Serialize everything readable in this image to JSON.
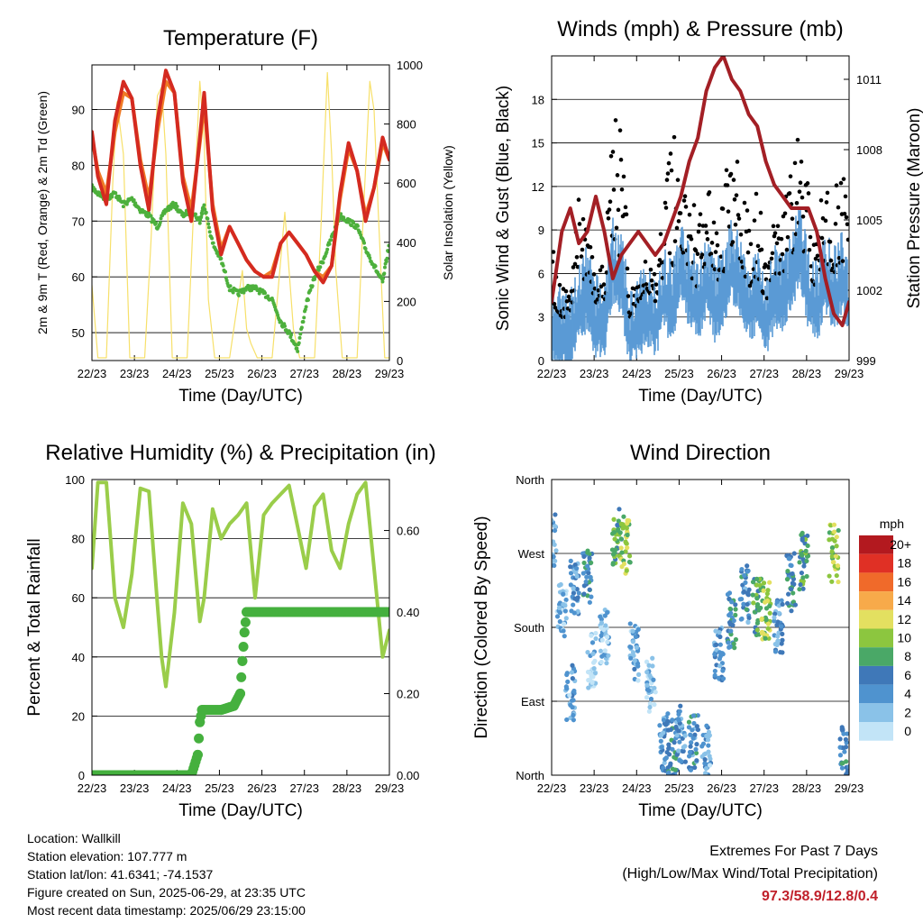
{
  "x_ticks": [
    "22/23",
    "23/23",
    "24/23",
    "25/23",
    "26/23",
    "27/23",
    "28/23",
    "29/23"
  ],
  "x_label": "Time (Day/UTC)",
  "panels": {
    "temperature": {
      "title": "Temperature (F)",
      "ylabel_left": "2m & 9m T (Red, Orange) & 2m Td (Green)",
      "ylabel_right": "Solar Insolation (Yellow)",
      "yticks_left": [
        "50",
        "60",
        "70",
        "80",
        "90"
      ],
      "yticks_right": [
        "0",
        "200",
        "400",
        "600",
        "800",
        "1000"
      ]
    },
    "winds": {
      "title": "Winds (mph) & Pressure (mb)",
      "ylabel_left": "Sonic Wind & Gust (Blue, Black)",
      "ylabel_right": "Station Pressure (Maroon)",
      "yticks_left": [
        "0",
        "3",
        "6",
        "9",
        "12",
        "15",
        "18"
      ],
      "yticks_right": [
        "999",
        "1002",
        "1005",
        "1008",
        "1011"
      ]
    },
    "humidity": {
      "title": "Relative Humidity (%) & Precipitation (in)",
      "ylabel_left": "Percent & Total Rainfall",
      "yticks_left": [
        "0",
        "20",
        "40",
        "60",
        "80",
        "100"
      ],
      "yticks_right": [
        "0.00",
        "0.20",
        "0.40",
        "0.60"
      ]
    },
    "direction": {
      "title": "Wind Direction",
      "ylabel_left": "Direction (Colored By Speed)",
      "yticks_left": [
        "North",
        "East",
        "South",
        "West",
        "North"
      ],
      "legend_title": "mph",
      "legend_labels": [
        "20+",
        "18",
        "16",
        "14",
        "12",
        "10",
        "8",
        "6",
        "4",
        "2",
        "0"
      ]
    }
  },
  "colors": {
    "temp_2m": "#d42a20",
    "temp_9m": "#f07a25",
    "dewpoint": "#4db03c",
    "solar": "#f7e06a",
    "gust": "#000000",
    "wind": "#5a9bd5",
    "pressure": "#a31f25",
    "rh": "#9acd4a",
    "precip": "#45b03e",
    "speed_scale": [
      "#c2e4f7",
      "#8ac2e8",
      "#4f93cf",
      "#3f78b8",
      "#4aa867",
      "#8cc63f",
      "#e3e060",
      "#f7aa4a",
      "#f06a2a",
      "#e03025",
      "#b3191f"
    ]
  },
  "info": {
    "location": "Location: Wallkill",
    "elevation": "Station elevation: 107.777 m",
    "latlon": "Station lat/lon: 41.6341; -74.1537",
    "created": "Figure created on Sun, 2025-06-29, at 23:35 UTC",
    "latest": "Most recent data timestamp: 2025/06/29 23:15:00"
  },
  "extremes": {
    "title": "Extremes For Past 7 Days",
    "subtitle": "(High/Low/Max Wind/Total Precipitation)",
    "values": "97.3/58.9/12.8/0.4"
  },
  "chart_data": [
    {
      "type": "line",
      "title": "Temperature (F)",
      "xlabel": "Time (Day/UTC)",
      "ylabel": "2m & 9m T (Red, Orange) & 2m Td (Green)",
      "ylabel_right": "Solar Insolation (Yellow)",
      "x_range_days": [
        22.96,
        29.96
      ],
      "ylim": [
        45,
        98
      ],
      "ylim_right": [
        0,
        1000
      ],
      "series": [
        {
          "name": "2m T",
          "axis": "left",
          "x": [
            22.96,
            23.1,
            23.3,
            23.5,
            23.7,
            23.9,
            24.1,
            24.3,
            24.5,
            24.7,
            24.9,
            25.1,
            25.3,
            25.5,
            25.6,
            25.8,
            26.0,
            26.2,
            26.4,
            26.6,
            26.8,
            27.0,
            27.2,
            27.4,
            27.6,
            27.8,
            28.0,
            28.2,
            28.4,
            28.6,
            28.8,
            29.0,
            29.2,
            29.4,
            29.6,
            29.8,
            29.96
          ],
          "values": [
            86,
            78,
            73,
            88,
            95,
            92,
            80,
            72,
            88,
            97,
            93,
            77,
            70,
            85,
            93,
            72,
            64,
            69,
            66,
            63,
            61,
            60,
            60,
            66,
            68,
            66,
            64,
            61,
            59,
            62,
            75,
            84,
            79,
            70,
            76,
            85,
            81
          ]
        },
        {
          "name": "9m T",
          "axis": "left",
          "x": [
            22.96,
            23.1,
            23.3,
            23.5,
            23.7,
            23.9,
            24.1,
            24.3,
            24.5,
            24.7,
            24.9,
            25.1,
            25.3,
            25.5,
            25.6,
            25.8,
            26.0,
            26.2,
            26.4,
            26.6,
            26.8,
            27.0,
            27.2,
            27.4,
            27.6,
            27.8,
            28.0,
            28.2,
            28.4,
            28.6,
            28.8,
            29.0,
            29.2,
            29.4,
            29.6,
            29.8,
            29.96
          ],
          "values": [
            85,
            79,
            75,
            86,
            93,
            92,
            81,
            74,
            86,
            95,
            93,
            78,
            72,
            84,
            91,
            73,
            65,
            69,
            66,
            63,
            61,
            60,
            61,
            66,
            68,
            66,
            64,
            61,
            60,
            62,
            74,
            83,
            79,
            71,
            76,
            84,
            81
          ]
        },
        {
          "name": "2m Td",
          "axis": "left",
          "x": [
            22.96,
            23.1,
            23.3,
            23.5,
            23.7,
            23.9,
            24.1,
            24.3,
            24.5,
            24.7,
            24.9,
            25.1,
            25.3,
            25.5,
            25.6,
            25.8,
            26.0,
            26.2,
            26.4,
            26.6,
            26.8,
            27.0,
            27.2,
            27.4,
            27.6,
            27.8,
            28.0,
            28.2,
            28.4,
            28.6,
            28.8,
            29.0,
            29.2,
            29.4,
            29.6,
            29.8,
            29.96
          ],
          "values": [
            76,
            75,
            74,
            75,
            73,
            74,
            72,
            71,
            69,
            72,
            73,
            71,
            72,
            70,
            73,
            66,
            63,
            58,
            57,
            58,
            58,
            57,
            56,
            52,
            50,
            47,
            55,
            60,
            63,
            67,
            71,
            70,
            69,
            65,
            62,
            59,
            66
          ]
        },
        {
          "name": "Solar Insolation",
          "axis": "right",
          "x": [
            22.96,
            23.1,
            23.3,
            23.45,
            23.55,
            23.7,
            23.85,
            24.2,
            24.35,
            24.5,
            24.6,
            24.7,
            24.85,
            25.2,
            25.35,
            25.5,
            25.6,
            25.7,
            25.85,
            26.2,
            26.35,
            26.5,
            26.6,
            26.7,
            26.85,
            27.2,
            27.35,
            27.5,
            27.6,
            27.7,
            27.85,
            28.2,
            28.35,
            28.5,
            28.6,
            28.7,
            28.85,
            29.2,
            29.35,
            29.5,
            29.6,
            29.7,
            29.85,
            29.96
          ],
          "values": [
            250,
            0,
            0,
            600,
            880,
            700,
            0,
            0,
            400,
            900,
            930,
            700,
            0,
            0,
            500,
            950,
            750,
            200,
            0,
            0,
            150,
            300,
            100,
            50,
            0,
            0,
            250,
            500,
            300,
            100,
            0,
            0,
            450,
            980,
            700,
            300,
            0,
            0,
            500,
            950,
            850,
            500,
            0,
            0
          ]
        }
      ]
    },
    {
      "type": "line",
      "title": "Winds (mph) & Pressure (mb)",
      "xlabel": "Time (Day/UTC)",
      "ylabel": "Sonic Wind & Gust (Blue, Black)",
      "ylabel_right": "Station Pressure (Maroon)",
      "x_range_days": [
        22.96,
        29.96
      ],
      "ylim": [
        0,
        21
      ],
      "ylim_right": [
        999,
        1012
      ],
      "series": [
        {
          "name": "Sonic Wind",
          "axis": "left",
          "x": [
            22.96,
            23.2,
            23.4,
            23.6,
            23.8,
            24.0,
            24.2,
            24.4,
            24.6,
            24.8,
            25.0,
            25.2,
            25.4,
            25.6,
            25.8,
            26.0,
            26.2,
            26.4,
            26.6,
            26.8,
            27.0,
            27.2,
            27.4,
            27.6,
            27.8,
            28.0,
            28.2,
            28.4,
            28.6,
            28.8,
            29.0,
            29.2,
            29.4,
            29.6,
            29.8,
            29.96
          ],
          "values": [
            3,
            2,
            2,
            4,
            5,
            3,
            3,
            7,
            6,
            2,
            3,
            4,
            3,
            5,
            4,
            7,
            5,
            4,
            6,
            4,
            5,
            7,
            6,
            4,
            5,
            3,
            5,
            5,
            6,
            8,
            5,
            4,
            6,
            5,
            6,
            4
          ]
        },
        {
          "name": "Gust",
          "axis": "left",
          "x": [
            22.96,
            23.2,
            23.4,
            23.6,
            23.8,
            24.0,
            24.2,
            24.4,
            24.6,
            24.8,
            25.0,
            25.2,
            25.4,
            25.6,
            25.8,
            26.0,
            26.2,
            26.4,
            26.6,
            26.8,
            27.0,
            27.2,
            27.4,
            27.6,
            27.8,
            28.0,
            28.2,
            28.4,
            28.6,
            28.8,
            29.0,
            29.2,
            29.4,
            29.6,
            29.8,
            29.96
          ],
          "values": [
            8,
            6,
            5,
            12,
            9,
            6,
            7,
            16,
            18,
            5,
            6,
            7,
            6,
            12,
            17,
            10,
            13,
            9,
            13,
            10,
            12,
            15,
            13,
            10,
            12,
            8,
            10,
            11,
            13,
            17,
            12,
            9,
            13,
            12,
            14,
            9
          ]
        },
        {
          "name": "Station Pressure",
          "axis": "right",
          "x": [
            22.96,
            23.2,
            23.4,
            23.6,
            23.8,
            24.0,
            24.2,
            24.4,
            24.6,
            24.8,
            25.0,
            25.2,
            25.4,
            25.6,
            25.8,
            26.0,
            26.2,
            26.4,
            26.6,
            26.8,
            27.0,
            27.2,
            27.4,
            27.6,
            27.8,
            28.0,
            28.2,
            28.4,
            28.6,
            28.8,
            29.0,
            29.2,
            29.4,
            29.6,
            29.8,
            29.96
          ],
          "values": [
            1001.5,
            1004.5,
            1005.5,
            1004.0,
            1004.5,
            1006.0,
            1004.5,
            1002.5,
            1003.5,
            1004.0,
            1004.5,
            1004.0,
            1003.5,
            1004.0,
            1005.0,
            1006.0,
            1007.5,
            1008.5,
            1010.5,
            1011.5,
            1012.0,
            1011.0,
            1010.5,
            1009.5,
            1009.0,
            1007.5,
            1006.5,
            1006.0,
            1005.5,
            1005.5,
            1005.5,
            1004.5,
            1002.5,
            1001.0,
            1000.5,
            1001.5
          ]
        }
      ]
    },
    {
      "type": "line",
      "title": "Relative Humidity (%) & Precipitation (in)",
      "xlabel": "Time (Day/UTC)",
      "ylabel": "Percent & Total Rainfall",
      "x_range_days": [
        22.96,
        29.96
      ],
      "ylim": [
        0,
        100
      ],
      "ylim_right": [
        0,
        0.725
      ],
      "series": [
        {
          "name": "Relative Humidity",
          "axis": "left",
          "x": [
            22.96,
            23.1,
            23.3,
            23.5,
            23.7,
            23.9,
            24.1,
            24.3,
            24.5,
            24.6,
            24.7,
            24.9,
            25.1,
            25.3,
            25.5,
            25.6,
            25.8,
            26.0,
            26.2,
            26.4,
            26.6,
            26.8,
            27.0,
            27.2,
            27.4,
            27.6,
            27.8,
            28.0,
            28.2,
            28.4,
            28.6,
            28.8,
            29.0,
            29.2,
            29.4,
            29.6,
            29.8,
            29.96
          ],
          "values": [
            70,
            99,
            99,
            60,
            50,
            68,
            97,
            96,
            58,
            40,
            30,
            55,
            92,
            85,
            52,
            60,
            90,
            80,
            85,
            88,
            92,
            60,
            88,
            92,
            95,
            98,
            84,
            70,
            91,
            95,
            76,
            70,
            85,
            95,
            99,
            70,
            40,
            49
          ]
        },
        {
          "name": "Total Precipitation",
          "axis": "right",
          "x": [
            22.96,
            25.3,
            25.45,
            25.5,
            25.55,
            25.6,
            26.0,
            26.3,
            26.45,
            26.5,
            26.55,
            26.6,
            29.96
          ],
          "values": [
            0.0,
            0.0,
            0.05,
            0.13,
            0.16,
            0.16,
            0.16,
            0.17,
            0.2,
            0.28,
            0.35,
            0.4,
            0.4
          ]
        }
      ]
    },
    {
      "type": "scatter",
      "title": "Wind Direction",
      "xlabel": "Time (Day/UTC)",
      "ylabel": "Direction (Colored By Speed)",
      "x_range_days": [
        22.96,
        29.96
      ],
      "ylim": [
        0,
        360
      ],
      "yticks": [
        "North",
        "East",
        "South",
        "West",
        "North"
      ],
      "colorbar": {
        "title": "mph",
        "labels": [
          "20+",
          "18",
          "16",
          "14",
          "12",
          "10",
          "8",
          "6",
          "4",
          "2",
          "0"
        ]
      },
      "clusters": [
        {
          "x": 22.96,
          "y": 285,
          "speed": 4
        },
        {
          "x": 23.2,
          "y": 200,
          "speed": 2
        },
        {
          "x": 23.4,
          "y": 100,
          "speed": 3
        },
        {
          "x": 23.5,
          "y": 230,
          "speed": 4
        },
        {
          "x": 23.8,
          "y": 240,
          "speed": 6
        },
        {
          "x": 23.9,
          "y": 140,
          "speed": 1
        },
        {
          "x": 24.2,
          "y": 170,
          "speed": 2
        },
        {
          "x": 24.5,
          "y": 290,
          "speed": 8
        },
        {
          "x": 24.7,
          "y": 280,
          "speed": 10
        },
        {
          "x": 24.9,
          "y": 150,
          "speed": 3
        },
        {
          "x": 25.3,
          "y": 110,
          "speed": 2
        },
        {
          "x": 25.6,
          "y": 40,
          "speed": 4
        },
        {
          "x": 25.8,
          "y": 35,
          "speed": 6
        },
        {
          "x": 26.0,
          "y": 50,
          "speed": 4
        },
        {
          "x": 26.3,
          "y": 40,
          "speed": 5
        },
        {
          "x": 26.6,
          "y": 30,
          "speed": 3
        },
        {
          "x": 26.9,
          "y": 150,
          "speed": 4
        },
        {
          "x": 27.2,
          "y": 190,
          "speed": 6
        },
        {
          "x": 27.5,
          "y": 220,
          "speed": 5
        },
        {
          "x": 27.8,
          "y": 205,
          "speed": 8
        },
        {
          "x": 28.0,
          "y": 200,
          "speed": 10
        },
        {
          "x": 28.3,
          "y": 180,
          "speed": 4
        },
        {
          "x": 28.6,
          "y": 235,
          "speed": 6
        },
        {
          "x": 28.9,
          "y": 260,
          "speed": 8
        },
        {
          "x": 29.6,
          "y": 270,
          "speed": 10
        },
        {
          "x": 29.85,
          "y": 25,
          "speed": 6
        }
      ]
    }
  ]
}
